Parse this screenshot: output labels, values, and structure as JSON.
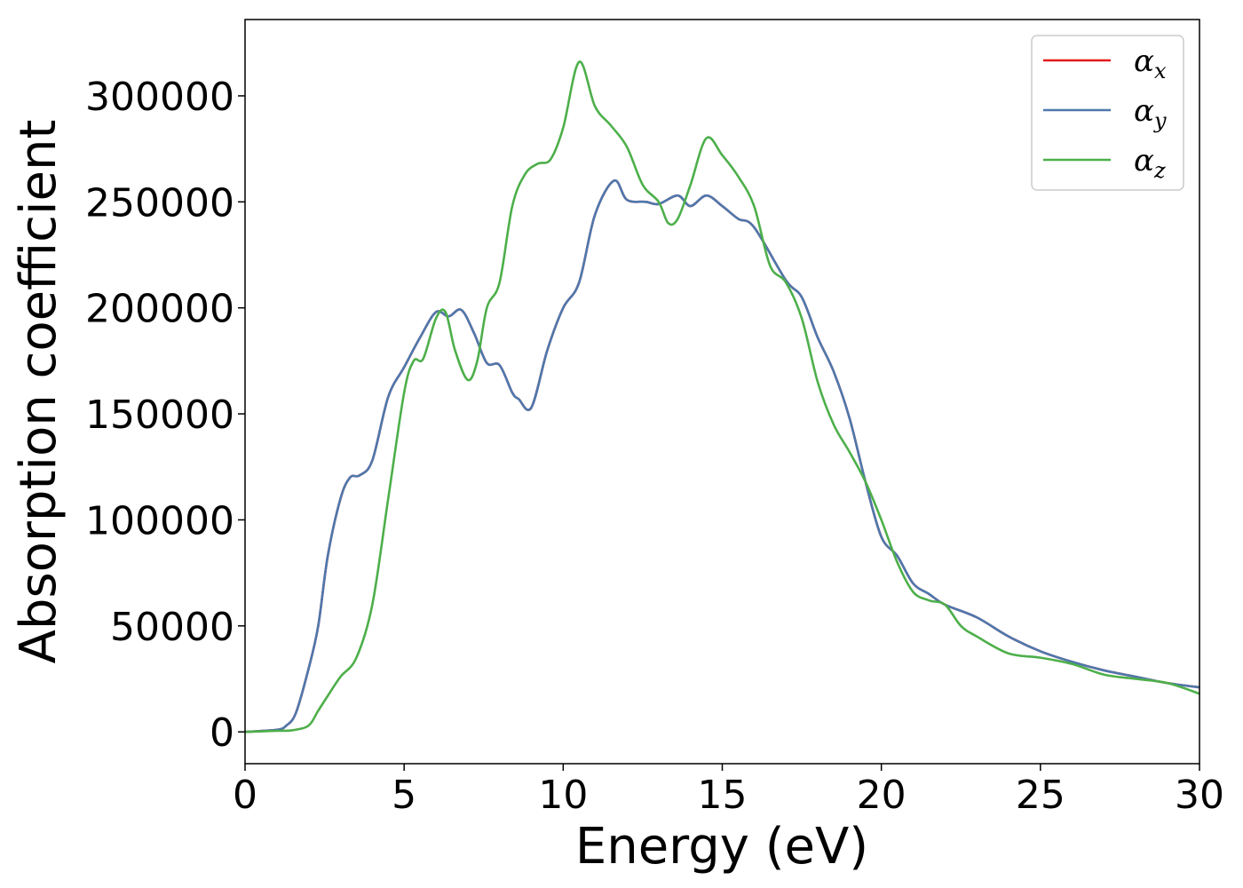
{
  "chart_data": {
    "type": "line",
    "xlabel": "Energy (eV)",
    "ylabel": "Absorption coefficient",
    "xlim": [
      0,
      30
    ],
    "ylim": [
      -15000,
      336000
    ],
    "xticks": [
      0,
      5,
      10,
      15,
      20,
      25,
      30
    ],
    "xtick_labels": [
      "0",
      "5",
      "10",
      "15",
      "20",
      "25",
      "30"
    ],
    "yticks": [
      0,
      50000,
      100000,
      150000,
      200000,
      250000,
      300000
    ],
    "ytick_labels": [
      "0",
      "50000",
      "100000",
      "150000",
      "200000",
      "250000",
      "300000"
    ],
    "grid": false,
    "legend_position": "top-right",
    "series": [
      {
        "name": "α",
        "subscript": "x",
        "color": "#e41a1c",
        "x": [
          0,
          1,
          1.3,
          1.6,
          2,
          2.3,
          2.6,
          3,
          3.3,
          3.6,
          4,
          4.5,
          5,
          5.5,
          6,
          6.4,
          6.8,
          7.2,
          7.6,
          8,
          8.4,
          8.6,
          9,
          9.5,
          10,
          10.5,
          11,
          11.6,
          12,
          12.6,
          13,
          13.6,
          14,
          14.5,
          15,
          15.5,
          16,
          17,
          17.5,
          18,
          18.5,
          19,
          19.5,
          20,
          20.5,
          21,
          21.5,
          22,
          23,
          24,
          25,
          26,
          27,
          28,
          29,
          30
        ],
        "values": [
          0,
          1000,
          3000,
          9000,
          30000,
          50000,
          83000,
          110000,
          120000,
          121000,
          128000,
          158000,
          172000,
          186000,
          198000,
          196000,
          199000,
          188000,
          174000,
          173000,
          160000,
          157000,
          153000,
          180000,
          200000,
          212000,
          244000,
          260000,
          251000,
          250000,
          249000,
          253000,
          248000,
          253000,
          248000,
          242000,
          238000,
          213000,
          205000,
          186000,
          170000,
          148000,
          118000,
          92000,
          83000,
          70000,
          65000,
          60000,
          54000,
          45000,
          38000,
          33000,
          29000,
          26000,
          23000,
          21000
        ]
      },
      {
        "name": "α",
        "subscript": "y",
        "color": "#4d78ad",
        "x": [
          0,
          1,
          1.3,
          1.6,
          2,
          2.3,
          2.6,
          3,
          3.3,
          3.6,
          4,
          4.5,
          5,
          5.5,
          6,
          6.4,
          6.8,
          7.2,
          7.6,
          8,
          8.4,
          8.6,
          9,
          9.5,
          10,
          10.5,
          11,
          11.6,
          12,
          12.6,
          13,
          13.6,
          14,
          14.5,
          15,
          15.5,
          16,
          17,
          17.5,
          18,
          18.5,
          19,
          19.5,
          20,
          20.5,
          21,
          21.5,
          22,
          23,
          24,
          25,
          26,
          27,
          28,
          29,
          30
        ],
        "values": [
          0,
          1000,
          3000,
          9000,
          30000,
          50000,
          83000,
          110000,
          120000,
          121000,
          128000,
          158000,
          172000,
          186000,
          198000,
          196000,
          199000,
          188000,
          174000,
          173000,
          160000,
          157000,
          153000,
          180000,
          200000,
          212000,
          244000,
          260000,
          251000,
          250000,
          249000,
          253000,
          248000,
          253000,
          248000,
          242000,
          238000,
          213000,
          205000,
          186000,
          170000,
          148000,
          118000,
          92000,
          83000,
          70000,
          65000,
          60000,
          54000,
          45000,
          38000,
          33000,
          29000,
          26000,
          23000,
          21000
        ]
      },
      {
        "name": "α",
        "subscript": "z",
        "color": "#4daf4a",
        "x": [
          0,
          1,
          1.5,
          2,
          2.3,
          2.6,
          3,
          3.5,
          4,
          4.5,
          5,
          5.3,
          5.6,
          6,
          6.3,
          6.6,
          7,
          7.3,
          7.6,
          8,
          8.4,
          8.8,
          9.2,
          9.6,
          10,
          10.5,
          11,
          11.5,
          12,
          12.5,
          13,
          13.3,
          13.6,
          14,
          14.5,
          15,
          15.5,
          16,
          16.5,
          17,
          17.5,
          18,
          18.5,
          19,
          19.5,
          20,
          20.5,
          21,
          21.5,
          22,
          22.5,
          23,
          24,
          25,
          26,
          27,
          28,
          29,
          30
        ],
        "values": [
          0,
          500,
          800,
          3000,
          10000,
          17000,
          26000,
          35000,
          60000,
          110000,
          160000,
          175000,
          176000,
          195000,
          198000,
          180000,
          166000,
          175000,
          200000,
          212000,
          248000,
          263000,
          268000,
          270000,
          285000,
          316000,
          295000,
          286000,
          276000,
          258000,
          250000,
          240000,
          242000,
          258000,
          280000,
          272000,
          262000,
          248000,
          220000,
          212000,
          195000,
          165000,
          145000,
          132000,
          118000,
          100000,
          80000,
          66000,
          62000,
          60000,
          50000,
          45000,
          37000,
          35000,
          32000,
          27000,
          25000,
          23000,
          18000
        ]
      }
    ]
  }
}
